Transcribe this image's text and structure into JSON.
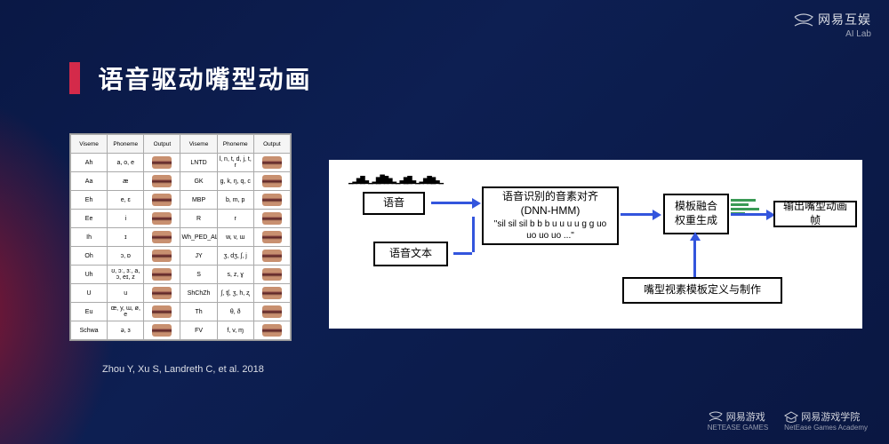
{
  "brand": {
    "name": "网易互娱",
    "sub": "AI Lab"
  },
  "title": "语音驱动嘴型动画",
  "citation": "Zhou Y, Xu S, Landreth C, et al. 2018",
  "table": {
    "headers": [
      "Viseme",
      "Phoneme",
      "Output",
      "Viseme",
      "Phoneme",
      "Output"
    ],
    "rows": [
      [
        "Ah",
        "a, o, e",
        "",
        "LNTD",
        "l, n, t, d, j, t, r",
        ""
      ],
      [
        "Aa",
        "æ",
        "",
        "GK",
        "g, k, ŋ, q, c",
        ""
      ],
      [
        "Eh",
        "e, ɛ",
        "",
        "MBP",
        "b, m, p",
        ""
      ],
      [
        "Ee",
        "i",
        "",
        "R",
        "r",
        ""
      ],
      [
        "Ih",
        "ɪ",
        "",
        "Wh_PED_AL",
        "w, v, ɯ",
        ""
      ],
      [
        "Oh",
        "ɔ, ɒ",
        "",
        "JY",
        "ʒ, dʒ, ʃ, j",
        ""
      ],
      [
        "Uh",
        "ʊ, ɔː, ɜː, a, ɔ, eɪ, z",
        "",
        "S",
        "s, z, ɣ",
        ""
      ],
      [
        "U",
        "u",
        "",
        "ShChZh",
        "ʃ, tʃ, ʒ, h, ʐ",
        ""
      ],
      [
        "Eu",
        "œ, y, ɯ, ø, e",
        "",
        "Th",
        "θ, ð",
        ""
      ],
      [
        "Schwa",
        "ə, ɜ",
        "",
        "FV",
        "f, v, ɱ",
        ""
      ]
    ]
  },
  "flow": {
    "audio_box": "语音",
    "text_box": "语音文本",
    "align_box": {
      "line1": "语音识别的音素对齐",
      "line2": "(DNN-HMM)",
      "line3": "\"sil sil sil b b b u u u u g g uo uo uo uo ...\""
    },
    "fusion_box": {
      "line1": "模板融合",
      "line2": "权重生成"
    },
    "output_box": "输出嘴型动画帧",
    "template_box": "嘴型视素模板定义与制作",
    "arrow_color": "#3355dd",
    "bar_color": "#3a9a55"
  },
  "footer": {
    "left": {
      "name": "网易游戏",
      "sub": "NETEASE GAMES"
    },
    "right": {
      "name": "网易游戏学院",
      "sub": "NetEase Games Academy"
    }
  }
}
